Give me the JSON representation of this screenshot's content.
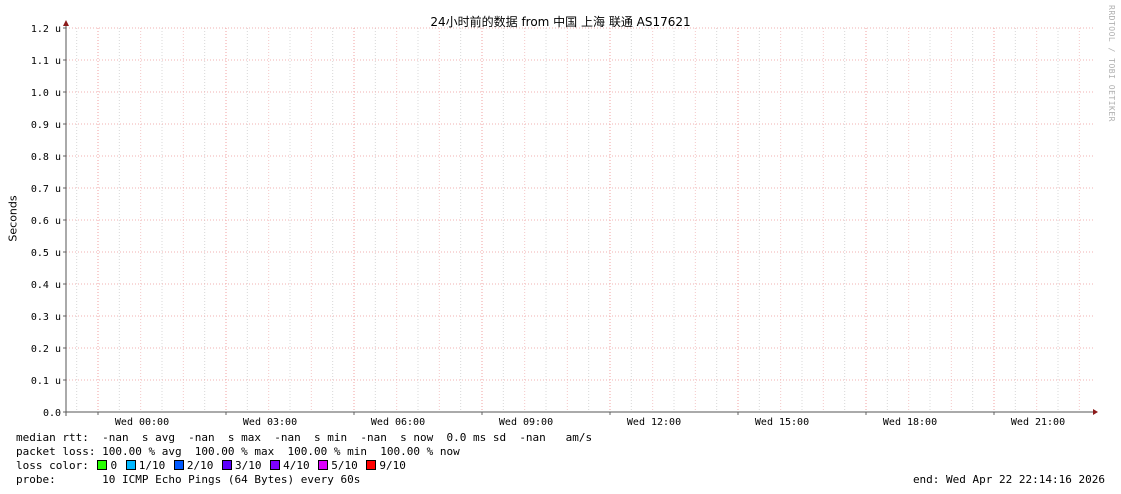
{
  "chart_data": {
    "type": "line",
    "title": "24小时前的数据 from 中国 上海 联通 AS17621",
    "ylabel": "Seconds",
    "ylim": [
      0,
      1.2
    ],
    "yticks": [
      "0.0",
      "0.1 u",
      "0.2 u",
      "0.3 u",
      "0.4 u",
      "0.5 u",
      "0.6 u",
      "0.7 u",
      "0.8 u",
      "0.9 u",
      "1.0 u",
      "1.1 u",
      "1.2 u"
    ],
    "xticks": [
      "Wed 00:00",
      "Wed 03:00",
      "Wed 06:00",
      "Wed 09:00",
      "Wed 12:00",
      "Wed 15:00",
      "Wed 18:00",
      "Wed 21:00"
    ],
    "grid": true,
    "series": [],
    "watermark": "RRDTOOL / TOBI OETIKER"
  },
  "legend": {
    "median_rtt": "median rtt:  -nan  s avg  -nan  s max  -nan  s min  -nan  s now  0.0 ms sd  -nan   am/s",
    "packet_loss": "packet loss: 100.00 % avg  100.00 % max  100.00 % min  100.00 % now",
    "loss_color_label": "loss color:",
    "loss_colors": [
      {
        "label": "0",
        "color": "#26ff00"
      },
      {
        "label": "1/10",
        "color": "#00b8ff"
      },
      {
        "label": "2/10",
        "color": "#0059ff"
      },
      {
        "label": "3/10",
        "color": "#5e00ff"
      },
      {
        "label": "4/10",
        "color": "#7e00ff"
      },
      {
        "label": "5/10",
        "color": "#dd00ff"
      },
      {
        "label": "9/10",
        "color": "#ff0000"
      }
    ],
    "probe": "probe:       10 ICMP Echo Pings (64 Bytes) every 60s",
    "end": "end: Wed Apr 22 22:14:16 2026"
  }
}
